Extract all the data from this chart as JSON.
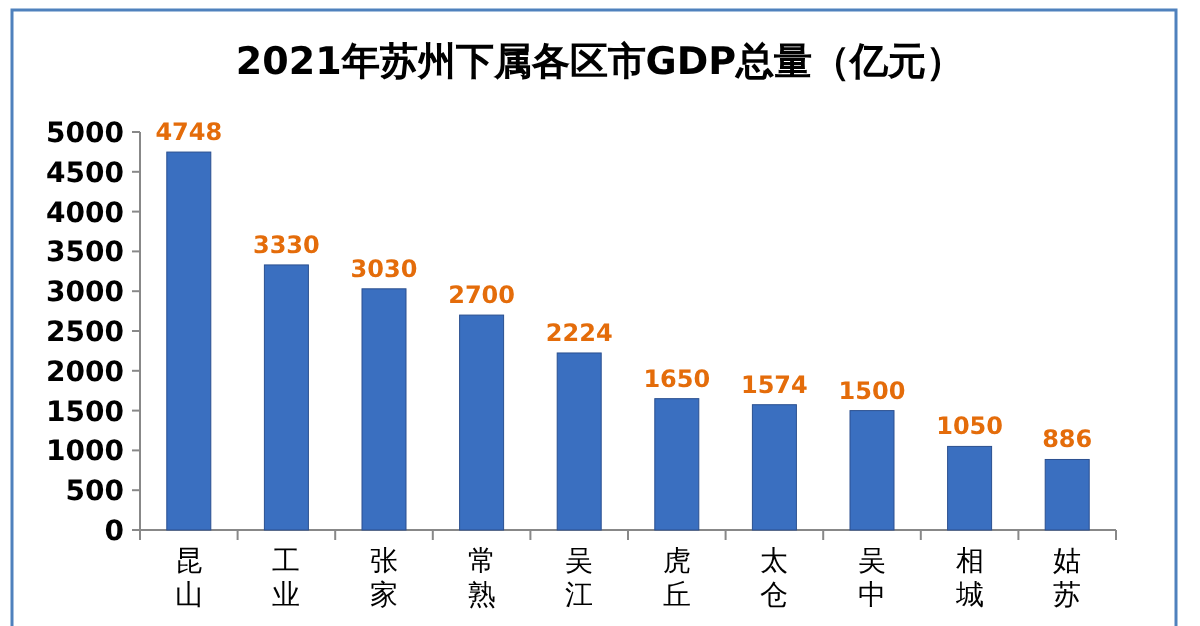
{
  "chart_data": {
    "type": "bar",
    "title": "2021年苏州下属各区市GDP总量（亿元）",
    "categories": [
      "昆山",
      "工业",
      "张家",
      "常熟",
      "吴江",
      "虎丘",
      "太仓",
      "吴中",
      "相城",
      "姑苏"
    ],
    "values": [
      4748,
      3330,
      3030,
      2700,
      2224,
      1650,
      1574,
      1500,
      1050,
      886
    ],
    "color": "#3a6fc0",
    "data_labels": true,
    "ylim": [
      0,
      5000
    ],
    "yticks": [
      0,
      500,
      1000,
      1500,
      2000,
      2500,
      3000,
      3500,
      4000,
      4500,
      5000
    ]
  }
}
